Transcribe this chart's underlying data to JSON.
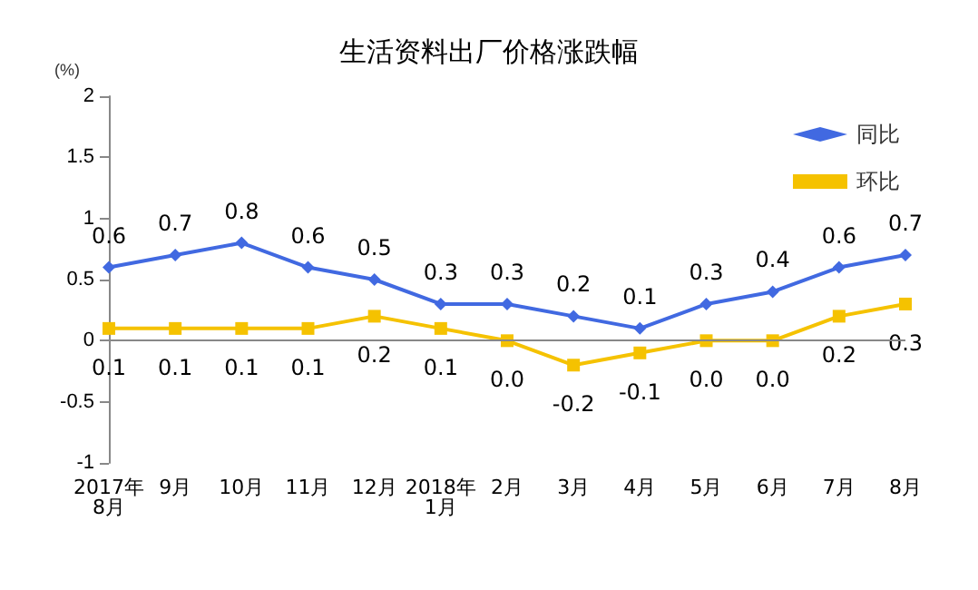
{
  "chart_data": {
    "type": "line",
    "title": "生活资料出厂价格涨跌幅",
    "ylabel": "(%)",
    "categories": [
      "2017年\n8月",
      "9月",
      "10月",
      "11月",
      "12月",
      "2018年\n1月",
      "2月",
      "3月",
      "4月",
      "5月",
      "6月",
      "7月",
      "8月"
    ],
    "series": [
      {
        "name": "同比",
        "color": "#4169e1",
        "marker": "diamond",
        "values": [
          0.6,
          0.7,
          0.8,
          0.6,
          0.5,
          0.3,
          0.3,
          0.2,
          0.1,
          0.3,
          0.4,
          0.6,
          0.7
        ],
        "value_labels": [
          "0.6",
          "0.7",
          "0.8",
          "0.6",
          "0.5",
          "0.3",
          "0.3",
          "0.2",
          "0.1",
          "0.3",
          "0.4",
          "0.6",
          "0.7"
        ]
      },
      {
        "name": "环比",
        "color": "#f5c200",
        "marker": "square",
        "values": [
          0.1,
          0.1,
          0.1,
          0.1,
          0.2,
          0.1,
          0.0,
          -0.2,
          -0.1,
          0.0,
          0.0,
          0.2,
          0.3
        ],
        "value_labels": [
          "0.1",
          "0.1",
          "0.1",
          "0.1",
          "0.2",
          "0.1",
          "0.0",
          "-0.2",
          "-0.1",
          "0.0",
          "0.0",
          "0.2",
          "0.3"
        ]
      }
    ],
    "ylim": [
      -1,
      2
    ],
    "yticks": [
      -1,
      -0.5,
      0,
      0.5,
      1,
      1.5,
      2
    ],
    "ref_lines": [
      {
        "axis": "y",
        "value": 0,
        "color": "#888888"
      }
    ],
    "legend": "top right",
    "line_style": "solid"
  }
}
